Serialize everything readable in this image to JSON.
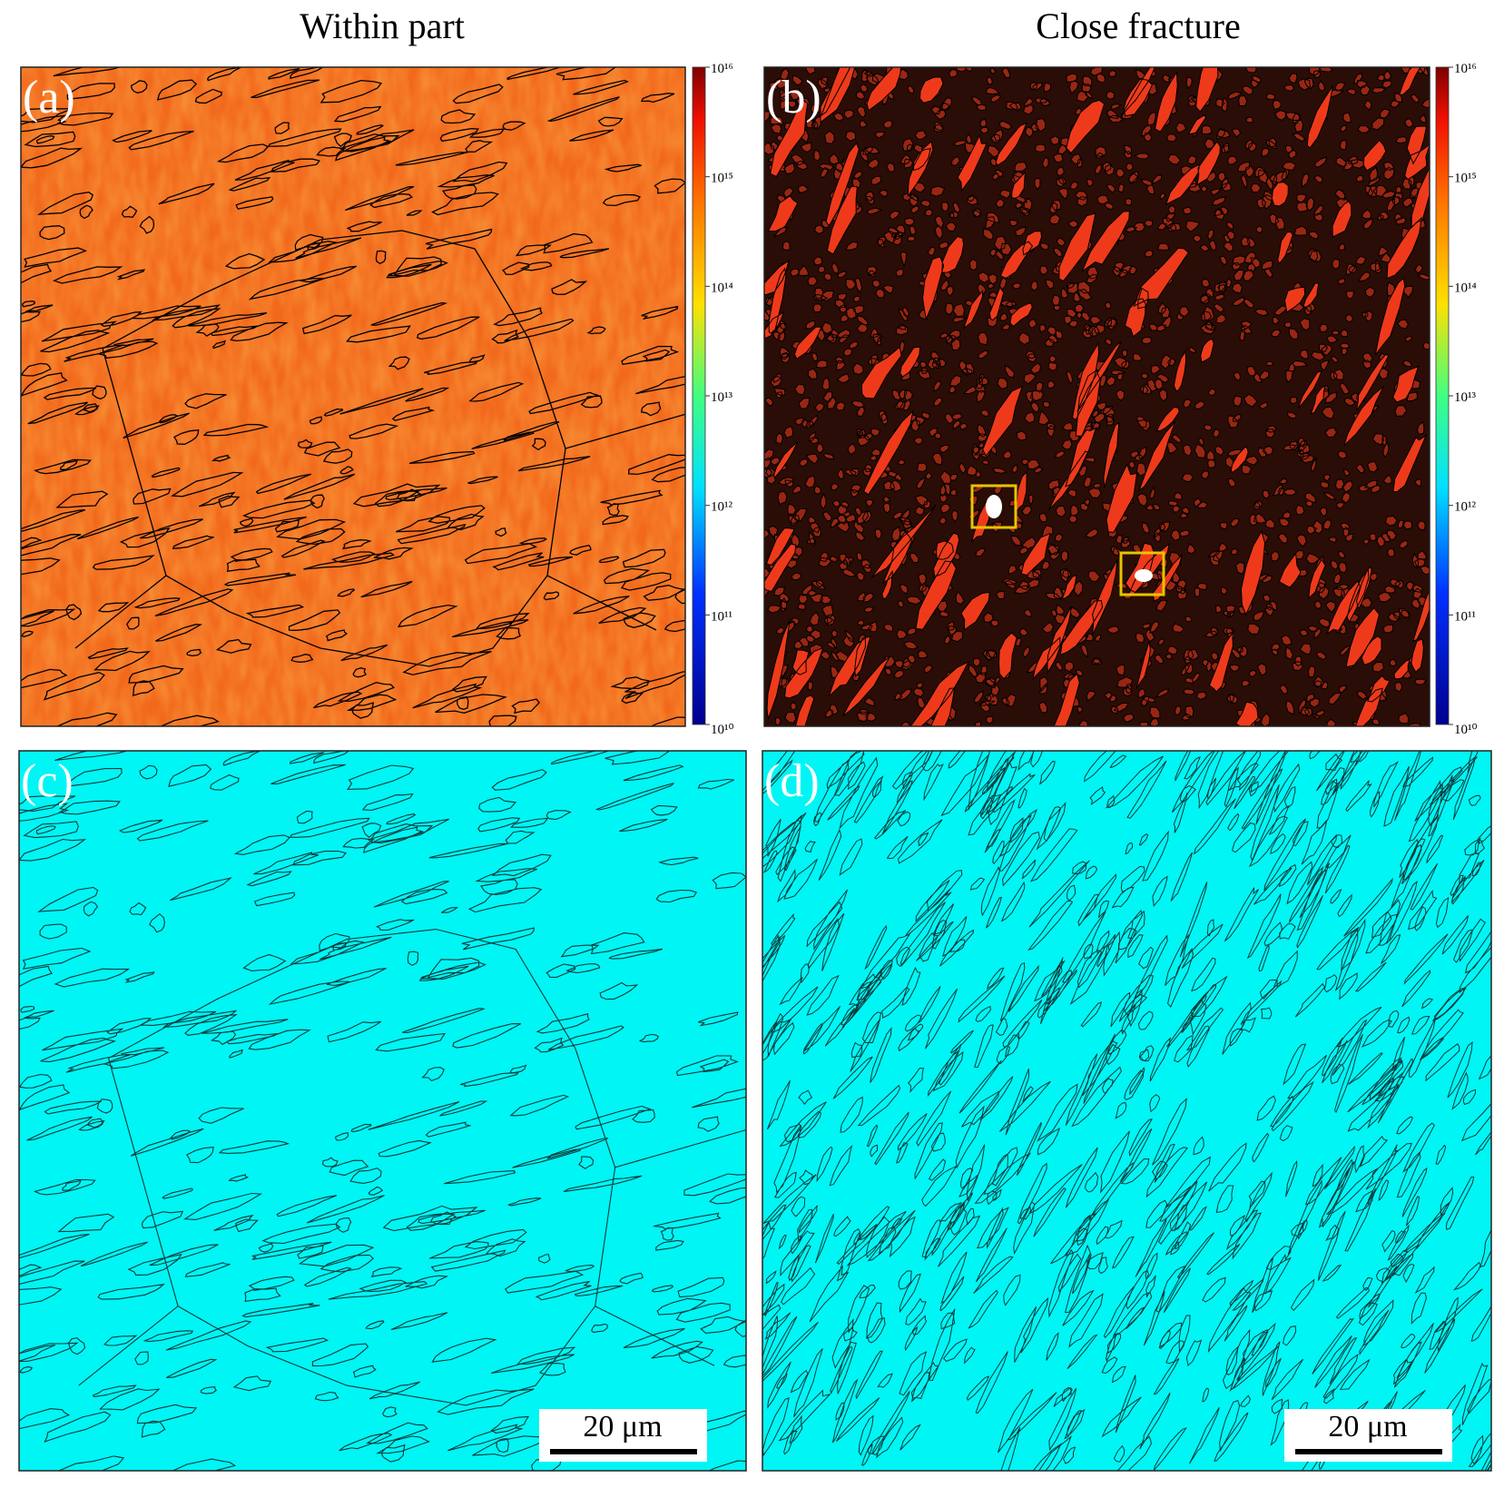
{
  "titles": [
    "Within part",
    "Close fracture"
  ],
  "panels": [
    {
      "label": "(a)"
    },
    {
      "label": "(b)"
    },
    {
      "label": "(c)",
      "scale_bar": "20 μm"
    },
    {
      "label": "(d)",
      "scale_bar": "20 μm"
    }
  ],
  "colorbar": {
    "scale": "log",
    "ylim": [
      10000000000,
      10000000000000000
    ],
    "yticks": [
      {
        "value": 10000000000,
        "label": "10¹⁰"
      },
      {
        "value": 100000000000,
        "label": "10¹¹"
      },
      {
        "value": 1000000000000,
        "label": "10¹²"
      },
      {
        "value": 10000000000000,
        "label": "10¹³"
      },
      {
        "value": 100000000000000,
        "label": "10¹⁴"
      },
      {
        "value": 1000000000000000,
        "label": "10¹⁵"
      },
      {
        "value": 10000000000000000,
        "label": "10¹⁶"
      }
    ]
  }
}
